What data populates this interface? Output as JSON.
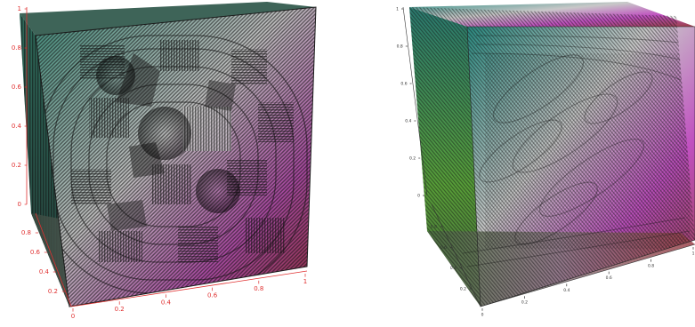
{
  "left_plot": {
    "z_ticks": [
      "0",
      "0.2",
      "0.4",
      "0.6",
      "0.8",
      "1"
    ],
    "x_ticks": [
      "0",
      "0.2",
      "0.4",
      "0.6",
      "0.8",
      "1"
    ],
    "y_ticks": [
      "0.2",
      "0.4",
      "0.6",
      "0.8"
    ],
    "tick_color": "#e03030",
    "face_colors": {
      "top_left": "#3a8070",
      "top_right": "#a040a0",
      "bottom_left": "#3c5a48",
      "bottom_right": "#9a3a40",
      "center": "#c8c8c8"
    }
  },
  "right_plot": {
    "z_ticks": [
      "0",
      "0.2",
      "0.4",
      "0.6",
      "0.8",
      "1"
    ],
    "x_ticks": [
      "0",
      "0.2",
      "0.4",
      "0.6",
      "0.8",
      "1"
    ],
    "y_ticks": [
      "0.2",
      "0.4",
      "0.6",
      "0.8"
    ],
    "tick_color": "#333333",
    "face_colors": {
      "top_left": "#2a8a80",
      "top_right": "#c040c0",
      "bottom_left": "#50a030",
      "bottom_right": "#b05040",
      "center": "#d0d0d0"
    }
  }
}
